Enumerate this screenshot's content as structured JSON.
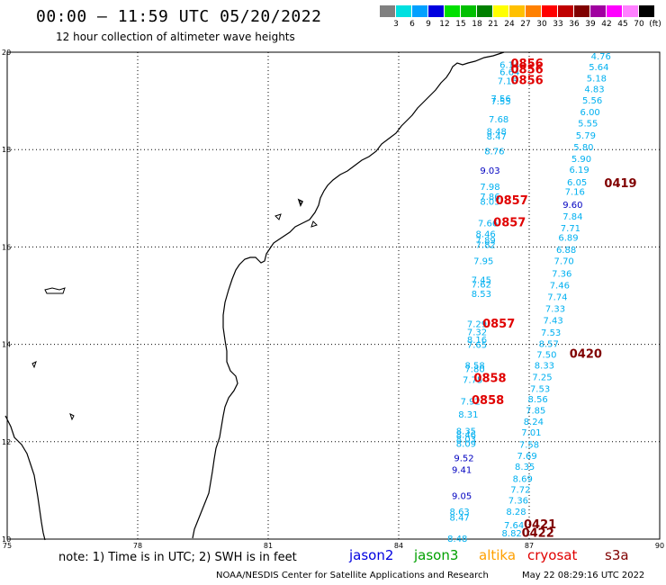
{
  "header": {
    "title": "00:00 – 11:59 UTC 05/20/2022",
    "subtitle": "12 hour collection of altimeter wave heights"
  },
  "color_scale": {
    "labels": [
      "3",
      "6",
      "9",
      "12",
      "15",
      "18",
      "21",
      "24",
      "27",
      "30",
      "33",
      "36",
      "39",
      "42",
      "45",
      "70",
      "(ft)"
    ],
    "colors": [
      "#808080",
      "#00e0e0",
      "#00a0ff",
      "#0000e0",
      "#00e000",
      "#00c000",
      "#008000",
      "#ffff00",
      "#ffc000",
      "#ff8000",
      "#ff0000",
      "#c00000",
      "#800000",
      "#a000a0",
      "#ff00ff",
      "#ff80ff",
      "#000000"
    ]
  },
  "map": {
    "lat_labels": [
      "20",
      "18",
      "16",
      "14",
      "12",
      "10"
    ],
    "lon_labels": [
      "75",
      "78",
      "81",
      "84",
      "87",
      "90"
    ],
    "land_color": "#000000"
  },
  "tracks": [
    {
      "id": "t1",
      "color": "#00b0f0",
      "points": [
        {
          "v": "4.76",
          "lon": 88.65,
          "lat": 19.93
        },
        {
          "v": "5.64",
          "lon": 88.6,
          "lat": 19.7
        },
        {
          "v": "5.18",
          "lon": 88.55,
          "lat": 19.47
        },
        {
          "v": "4.83",
          "lon": 88.5,
          "lat": 19.25
        },
        {
          "v": "5.56",
          "lon": 88.45,
          "lat": 19.02
        },
        {
          "v": "6.00",
          "lon": 88.4,
          "lat": 18.78
        },
        {
          "v": "5.55",
          "lon": 88.35,
          "lat": 18.55
        },
        {
          "v": "5.79",
          "lon": 88.3,
          "lat": 18.3
        },
        {
          "v": "5.80",
          "lon": 88.25,
          "lat": 18.06
        },
        {
          "v": "5.90",
          "lon": 88.2,
          "lat": 17.82
        },
        {
          "v": "6.19",
          "lon": 88.15,
          "lat": 17.6
        },
        {
          "v": "6.05",
          "lon": 88.1,
          "lat": 17.34
        },
        {
          "v": "7.16",
          "lon": 88.05,
          "lat": 17.14
        },
        {
          "v": "7.84",
          "lon": 88.0,
          "lat": 16.64
        },
        {
          "v": "7.71",
          "lon": 87.95,
          "lat": 16.4
        },
        {
          "v": "6.89",
          "lon": 87.9,
          "lat": 16.2
        },
        {
          "v": "6.88",
          "lon": 87.85,
          "lat": 15.95
        },
        {
          "v": "7.70",
          "lon": 87.8,
          "lat": 15.72
        },
        {
          "v": "7.36",
          "lon": 87.75,
          "lat": 15.46
        },
        {
          "v": "7.46",
          "lon": 87.7,
          "lat": 15.22
        },
        {
          "v": "7.74",
          "lon": 87.65,
          "lat": 14.98
        },
        {
          "v": "7.33",
          "lon": 87.6,
          "lat": 14.74
        },
        {
          "v": "7.43",
          "lon": 87.55,
          "lat": 14.5
        },
        {
          "v": "7.53",
          "lon": 87.5,
          "lat": 14.25
        },
        {
          "v": "8.57",
          "lon": 87.45,
          "lat": 14.02
        },
        {
          "v": "7.50",
          "lon": 87.4,
          "lat": 13.8
        },
        {
          "v": "8.33",
          "lon": 87.35,
          "lat": 13.58
        },
        {
          "v": "7.25",
          "lon": 87.3,
          "lat": 13.34
        },
        {
          "v": "7.53",
          "lon": 87.25,
          "lat": 13.1
        },
        {
          "v": "8.56",
          "lon": 87.2,
          "lat": 12.88
        },
        {
          "v": "7.85",
          "lon": 87.15,
          "lat": 12.65
        },
        {
          "v": "8.24",
          "lon": 87.1,
          "lat": 12.42
        },
        {
          "v": "7.01",
          "lon": 87.05,
          "lat": 12.2
        },
        {
          "v": "7.58",
          "lon": 87.0,
          "lat": 11.95
        },
        {
          "v": "7.69",
          "lon": 86.95,
          "lat": 11.72
        },
        {
          "v": "8.35",
          "lon": 86.9,
          "lat": 11.5
        },
        {
          "v": "8.69",
          "lon": 86.85,
          "lat": 11.25
        },
        {
          "v": "7.72",
          "lon": 86.8,
          "lat": 11.03
        },
        {
          "v": "7.36",
          "lon": 86.75,
          "lat": 10.8
        },
        {
          "v": "8.28",
          "lon": 86.7,
          "lat": 10.57
        },
        {
          "v": "7.64",
          "lon": 86.65,
          "lat": 10.3
        },
        {
          "v": "8.82",
          "lon": 86.6,
          "lat": 10.13
        }
      ]
    },
    {
      "id": "t2",
      "color": "#00b0f0",
      "points": [
        {
          "v": "6.14",
          "lon": 86.55,
          "lat": 19.75
        },
        {
          "v": "6.64",
          "lon": 86.55,
          "lat": 19.6
        },
        {
          "v": "7.15",
          "lon": 86.5,
          "lat": 19.42
        },
        {
          "v": "7.56",
          "lon": 86.35,
          "lat": 19.06
        },
        {
          "v": "7.55",
          "lon": 86.35,
          "lat": 19.0
        },
        {
          "v": "7.68",
          "lon": 86.3,
          "lat": 18.63
        },
        {
          "v": "8.48",
          "lon": 86.25,
          "lat": 18.38
        },
        {
          "v": "8.47",
          "lon": 86.25,
          "lat": 18.28
        },
        {
          "v": "8.76",
          "lon": 86.2,
          "lat": 17.98
        },
        {
          "v": "7.98",
          "lon": 86.1,
          "lat": 17.25
        },
        {
          "v": "7.86",
          "lon": 86.1,
          "lat": 17.04
        },
        {
          "v": "8.05",
          "lon": 86.1,
          "lat": 16.94
        },
        {
          "v": "7.66",
          "lon": 86.05,
          "lat": 16.5
        },
        {
          "v": "8.46",
          "lon": 86.0,
          "lat": 16.28
        },
        {
          "v": "7.89",
          "lon": 86.0,
          "lat": 16.15
        },
        {
          "v": "7.82",
          "lon": 86.0,
          "lat": 16.05
        },
        {
          "v": "7.95",
          "lon": 85.95,
          "lat": 15.72
        },
        {
          "v": "7.45",
          "lon": 85.9,
          "lat": 15.33
        },
        {
          "v": "7.62",
          "lon": 85.9,
          "lat": 15.24
        },
        {
          "v": "8.53",
          "lon": 85.9,
          "lat": 15.05
        },
        {
          "v": "7.29",
          "lon": 85.8,
          "lat": 14.43
        },
        {
          "v": "7.32",
          "lon": 85.8,
          "lat": 14.26
        },
        {
          "v": "8.16",
          "lon": 85.8,
          "lat": 14.1
        },
        {
          "v": "7.65",
          "lon": 85.8,
          "lat": 14.0
        },
        {
          "v": "8.58",
          "lon": 85.75,
          "lat": 13.58
        },
        {
          "v": "7.80",
          "lon": 85.75,
          "lat": 13.5
        },
        {
          "v": "7.75",
          "lon": 85.7,
          "lat": 13.28
        },
        {
          "v": "7.92",
          "lon": 85.65,
          "lat": 12.84
        },
        {
          "v": "8.31",
          "lon": 85.6,
          "lat": 12.57
        },
        {
          "v": "8.35",
          "lon": 85.55,
          "lat": 12.23
        },
        {
          "v": "8.46",
          "lon": 85.55,
          "lat": 12.15
        },
        {
          "v": "8.03",
          "lon": 85.55,
          "lat": 12.06
        },
        {
          "v": "8.09",
          "lon": 85.55,
          "lat": 11.97
        }
      ]
    },
    {
      "id": "t3",
      "color": "#0000c0",
      "points": [
        {
          "v": "9.03",
          "lon": 86.1,
          "lat": 17.58
        },
        {
          "v": "9.60",
          "lon": 88.0,
          "lat": 16.88
        },
        {
          "v": "9.52",
          "lon": 85.5,
          "lat": 11.67
        },
        {
          "v": "9.41",
          "lon": 85.45,
          "lat": 11.43
        },
        {
          "v": "9.05",
          "lon": 85.45,
          "lat": 10.9
        }
      ]
    },
    {
      "id": "t4",
      "color": "#00b0f0",
      "points": [
        {
          "v": "8.63",
          "lon": 85.4,
          "lat": 10.57
        },
        {
          "v": "8.47",
          "lon": 85.4,
          "lat": 10.45
        },
        {
          "v": "8.48",
          "lon": 85.35,
          "lat": 10.02
        }
      ]
    },
    {
      "id": "t5",
      "color": "#e00000",
      "points": [
        {
          "v": "0856",
          "lon": 86.95,
          "lat": 19.76
        },
        {
          "v": "0856",
          "lon": 86.95,
          "lat": 19.64
        },
        {
          "v": "0856",
          "lon": 86.95,
          "lat": 19.42
        },
        {
          "v": "0857",
          "lon": 86.6,
          "lat": 16.95
        },
        {
          "v": "0857",
          "lon": 86.55,
          "lat": 16.5
        },
        {
          "v": "0857",
          "lon": 86.3,
          "lat": 14.42
        },
        {
          "v": "0858",
          "lon": 86.1,
          "lat": 13.3
        },
        {
          "v": "0858",
          "lon": 86.05,
          "lat": 12.85
        }
      ]
    },
    {
      "id": "t6",
      "color": "#800000",
      "points": [
        {
          "v": "0419",
          "lon": 89.1,
          "lat": 17.3
        },
        {
          "v": "0420",
          "lon": 88.3,
          "lat": 13.8
        },
        {
          "v": "0421",
          "lon": 87.25,
          "lat": 10.3
        },
        {
          "v": "0422",
          "lon": 87.2,
          "lat": 10.12
        }
      ]
    }
  ],
  "footer": {
    "note": "note: 1) Time is in UTC; 2) SWH is in feet",
    "legend": [
      {
        "label": "jason2",
        "color": "#0000e0"
      },
      {
        "label": "jason3",
        "color": "#00a000"
      },
      {
        "label": "altika",
        "color": "#ffa000"
      },
      {
        "label": "cryosat",
        "color": "#e00000"
      },
      {
        "label": "s3a",
        "color": "#800000"
      }
    ],
    "credit": "NOAA/NESDIS Center for Satellite Applications and Research",
    "date": "May 22 08:29:16 UTC 2022"
  }
}
